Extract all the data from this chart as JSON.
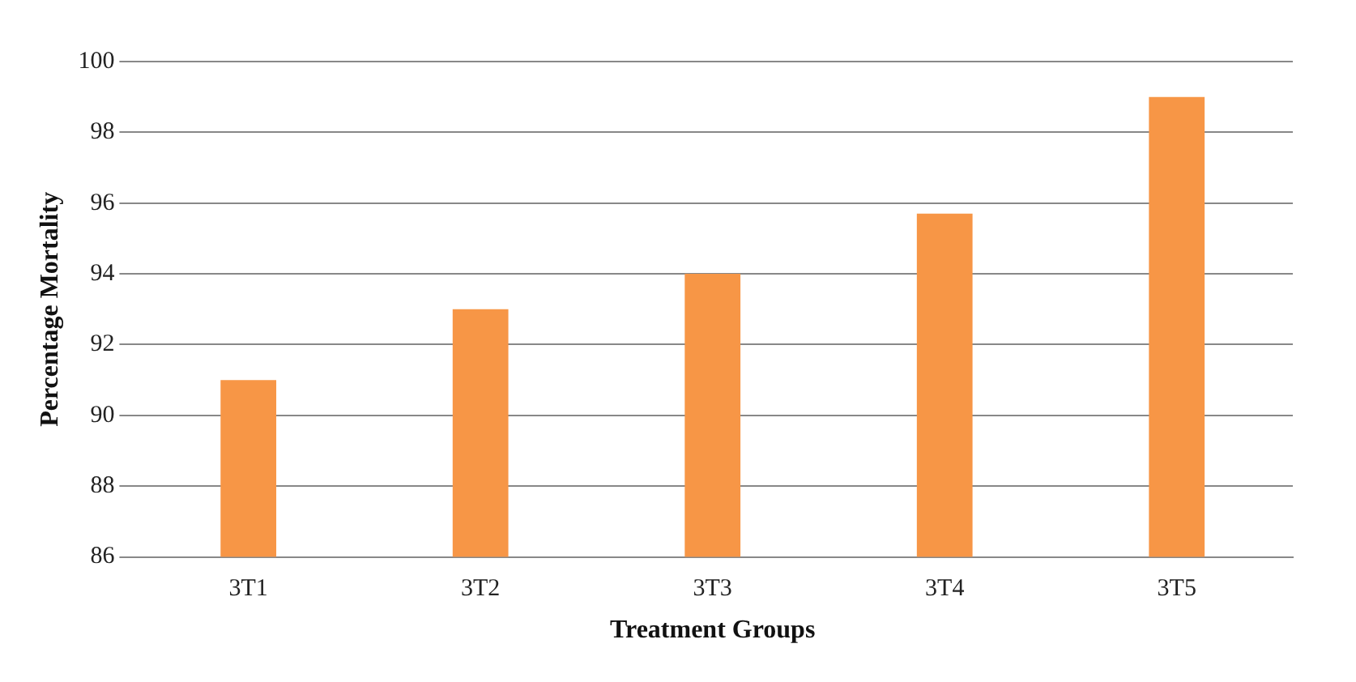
{
  "chart_data": {
    "type": "bar",
    "xlabel": "Treatment Groups",
    "ylabel": "Percentage Mortality",
    "categories": [
      "3T1",
      "3T2",
      "3T3",
      "3T4",
      "3T5"
    ],
    "values": [
      91,
      93,
      94,
      95.7,
      99
    ],
    "color": "#f79646",
    "ylim": [
      86,
      100
    ],
    "yticks": [
      86,
      88,
      90,
      92,
      94,
      96,
      98,
      100
    ],
    "grid": "y",
    "legend": false
  }
}
